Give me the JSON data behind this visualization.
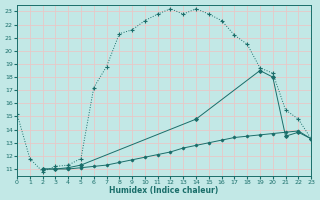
{
  "xlabel": "Humidex (Indice chaleur)",
  "bg_color": "#c2e8e6",
  "grid_color": "#b0d8d6",
  "line_color": "#1a6e6a",
  "xlim": [
    0,
    23
  ],
  "ylim": [
    10.5,
    23.5
  ],
  "yticks": [
    11,
    12,
    13,
    14,
    15,
    16,
    17,
    18,
    19,
    20,
    21,
    22,
    23
  ],
  "xticks": [
    0,
    1,
    2,
    3,
    4,
    5,
    6,
    7,
    8,
    9,
    10,
    11,
    12,
    13,
    14,
    15,
    16,
    17,
    18,
    19,
    20,
    21,
    22,
    23
  ],
  "line1_x": [
    0,
    1,
    2,
    3,
    4,
    5,
    6,
    7,
    8,
    9,
    10,
    11,
    12,
    13,
    14,
    15,
    16,
    17,
    18,
    19,
    20,
    21,
    22,
    23
  ],
  "line1_y": [
    15.2,
    11.8,
    10.8,
    11.2,
    11.3,
    11.8,
    17.2,
    18.8,
    21.3,
    21.6,
    22.3,
    22.8,
    23.2,
    22.8,
    23.2,
    22.8,
    22.3,
    21.2,
    20.5,
    18.7,
    18.3,
    15.5,
    14.8,
    13.3
  ],
  "line2_x": [
    2,
    3,
    4,
    5,
    14,
    19,
    20,
    21,
    22,
    23
  ],
  "line2_y": [
    11.0,
    11.0,
    11.1,
    11.3,
    14.8,
    18.5,
    18.0,
    13.5,
    13.8,
    13.3
  ],
  "line3_x": [
    2,
    3,
    4,
    5,
    6,
    7,
    8,
    9,
    10,
    11,
    12,
    13,
    14,
    15,
    16,
    17,
    18,
    19,
    20,
    21,
    22,
    23
  ],
  "line3_y": [
    11.0,
    11.0,
    11.0,
    11.1,
    11.2,
    11.3,
    11.5,
    11.7,
    11.9,
    12.1,
    12.3,
    12.6,
    12.8,
    13.0,
    13.2,
    13.4,
    13.5,
    13.6,
    13.7,
    13.8,
    13.9,
    13.3
  ]
}
